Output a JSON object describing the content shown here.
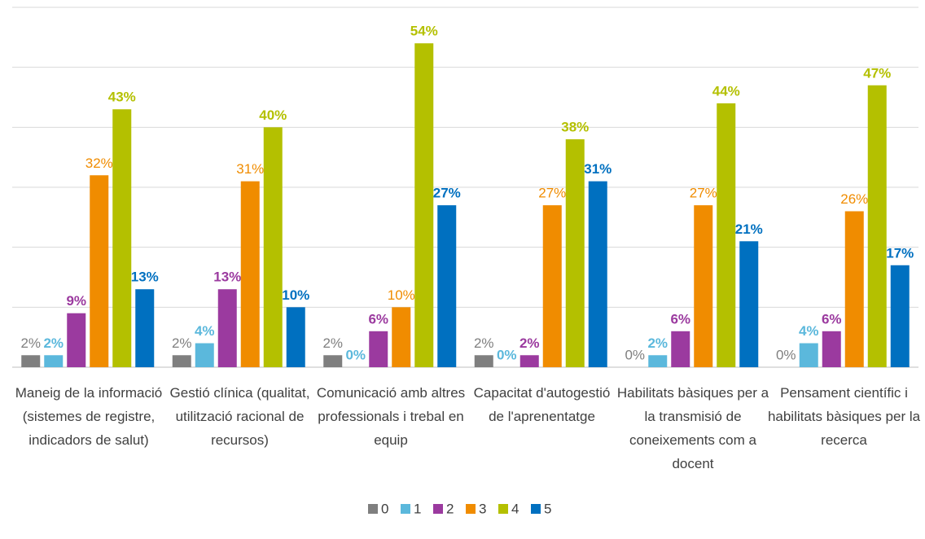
{
  "chart_data": {
    "type": "bar",
    "categories": [
      "Maneig de la informació (sistemes de registre, indicadors de salut)",
      "Gestió clínica (qualitat, utilització racional de recursos)",
      "Comunicació amb altres professionals i trebal en equip",
      "Capacitat d'autogestió de l'aprenentatge",
      "Habilitats bàsiques per a la transmisió de coneixements com a docent",
      "Pensament científic i habilitats bàsiques per la recerca"
    ],
    "series": [
      {
        "name": "0",
        "color": "#7f7f7f",
        "values": [
          2,
          2,
          2,
          2,
          0,
          0
        ],
        "value_labels": [
          "2%",
          "2%",
          "2%",
          "2%",
          "0%",
          "0%"
        ]
      },
      {
        "name": "1",
        "color": "#5bb8dc",
        "values": [
          2,
          4,
          0,
          0,
          2,
          4
        ],
        "value_labels": [
          "2%",
          "4%",
          "0%",
          "0%",
          "2%",
          "4%"
        ]
      },
      {
        "name": "2",
        "color": "#9b3a9f",
        "values": [
          9,
          13,
          6,
          2,
          6,
          6
        ],
        "value_labels": [
          "9%",
          "13%",
          "6%",
          "2%",
          "6%",
          "6%"
        ]
      },
      {
        "name": "3",
        "color": "#f08c00",
        "values": [
          32,
          31,
          10,
          27,
          27,
          26
        ],
        "value_labels": [
          "32%",
          "31%",
          "10%",
          "27%",
          "27%",
          "26%"
        ]
      },
      {
        "name": "4",
        "color": "#b4c000",
        "values": [
          43,
          40,
          54,
          38,
          44,
          47
        ],
        "value_labels": [
          "43%",
          "40%",
          "54%",
          "38%",
          "44%",
          "47%"
        ]
      },
      {
        "name": "5",
        "color": "#0070c0",
        "values": [
          13,
          10,
          27,
          31,
          21,
          17
        ],
        "value_labels": [
          "13%",
          "10%",
          "27%",
          "31%",
          "21%",
          "17%"
        ]
      }
    ],
    "ylim": [
      0,
      60
    ],
    "yticks": [
      0,
      10,
      20,
      30,
      40,
      50,
      60
    ],
    "grid": true,
    "legend": "bottom"
  }
}
